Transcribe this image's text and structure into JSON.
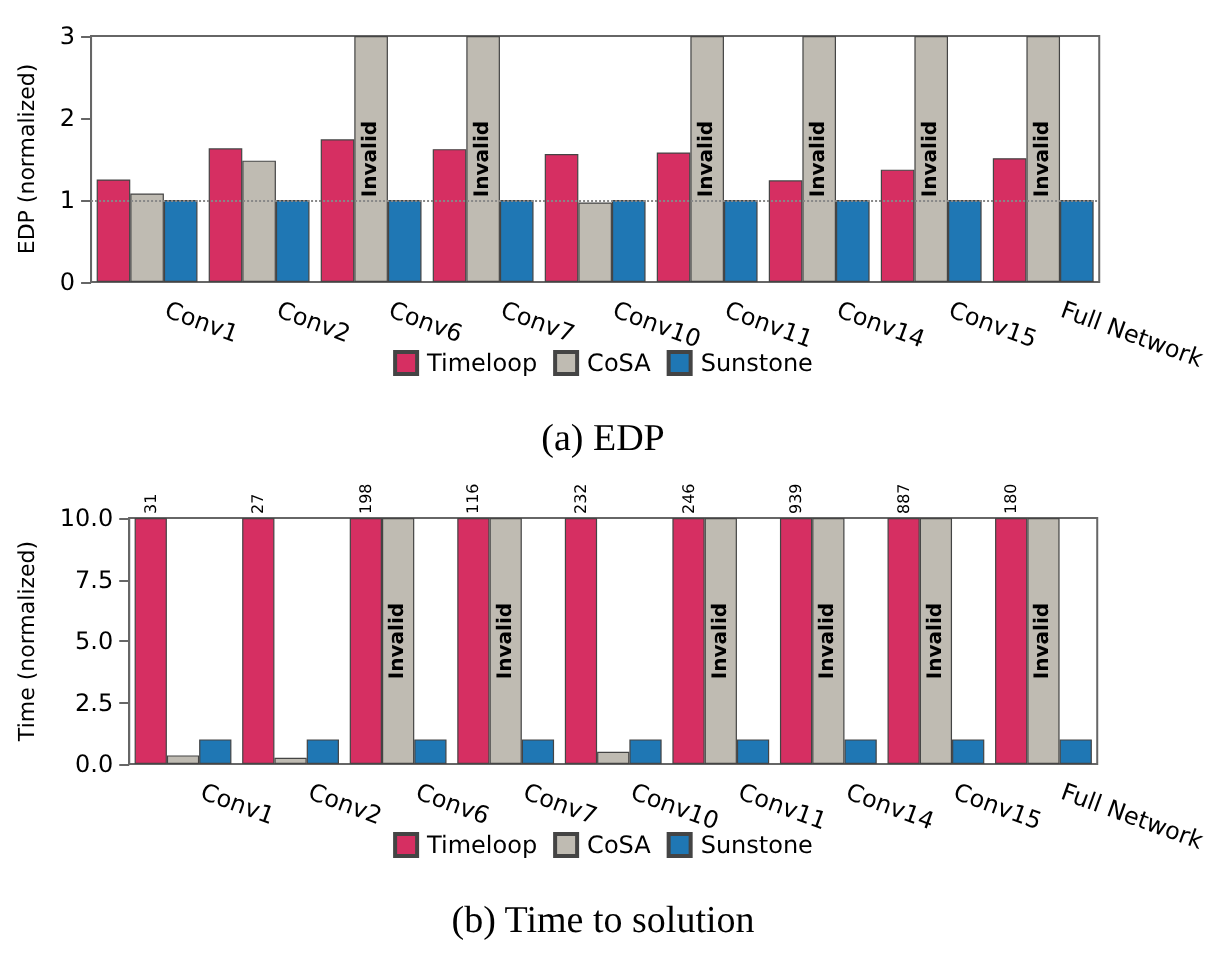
{
  "chart_data": [
    {
      "type": "bar",
      "title": "(a) EDP",
      "ylabel": "EDP (normalized)",
      "categories": [
        "Conv1",
        "Conv2",
        "Conv6",
        "Conv7",
        "Conv10",
        "Conv11",
        "Conv14",
        "Conv15",
        "Full Network"
      ],
      "series": [
        {
          "name": "Timeloop",
          "color": "#d62f62",
          "values": [
            1.25,
            1.63,
            1.74,
            1.62,
            1.56,
            1.58,
            1.24,
            1.37,
            1.51
          ]
        },
        {
          "name": "CoSA",
          "color": "#bfbbb2",
          "values": [
            1.08,
            1.48,
            3,
            3,
            0.97,
            3,
            3,
            3,
            3
          ],
          "value_labels": [
            null,
            null,
            "Invalid",
            "Invalid",
            null,
            "Invalid",
            "Invalid",
            "Invalid",
            "Invalid"
          ]
        },
        {
          "name": "Sunstone",
          "color": "#1f77b4",
          "values": [
            1,
            1,
            1,
            1,
            1,
            1,
            1,
            1,
            1
          ]
        }
      ],
      "ylim": [
        0,
        3
      ],
      "yticks": [
        0,
        1,
        2,
        3
      ],
      "ref_lines": [
        {
          "axis": "y",
          "value": 1,
          "color": "#888888",
          "line_style": "dotted"
        }
      ],
      "grid": false,
      "legend": "bottom"
    },
    {
      "type": "bar",
      "title": "(b) Time to solution",
      "ylabel": "Time (normalized)",
      "categories": [
        "Conv1",
        "Conv2",
        "Conv6",
        "Conv7",
        "Conv10",
        "Conv11",
        "Conv14",
        "Conv15",
        "Full Network"
      ],
      "series": [
        {
          "name": "Timeloop",
          "color": "#d62f62",
          "values": [
            10,
            10,
            10,
            10,
            10,
            10,
            10,
            10,
            10
          ]
        },
        {
          "name": "CoSA",
          "color": "#bfbbb2",
          "values": [
            0.35,
            0.25,
            10,
            10,
            0.5,
            10,
            10,
            10,
            10
          ],
          "value_labels": [
            null,
            null,
            "Invalid",
            "Invalid",
            null,
            "Invalid",
            "Invalid",
            "Invalid",
            "Invalid"
          ]
        },
        {
          "name": "Sunstone",
          "color": "#1f77b4",
          "values": [
            1,
            1,
            1,
            1,
            1,
            1,
            1,
            1,
            1
          ]
        }
      ],
      "ylim": [
        0,
        10
      ],
      "yticks": [
        {
          "value": 0,
          "label": "0.0"
        },
        {
          "value": 2.5,
          "label": "2.5"
        },
        {
          "value": 5,
          "label": "5.0"
        },
        {
          "value": 7.5,
          "label": "7.5"
        },
        {
          "value": 10,
          "label": "10.0"
        }
      ],
      "grid": false,
      "legend": "bottom",
      "annotations": [
        "31",
        "27",
        "198",
        "116",
        "232",
        "246",
        "939",
        "887",
        "180"
      ]
    }
  ]
}
